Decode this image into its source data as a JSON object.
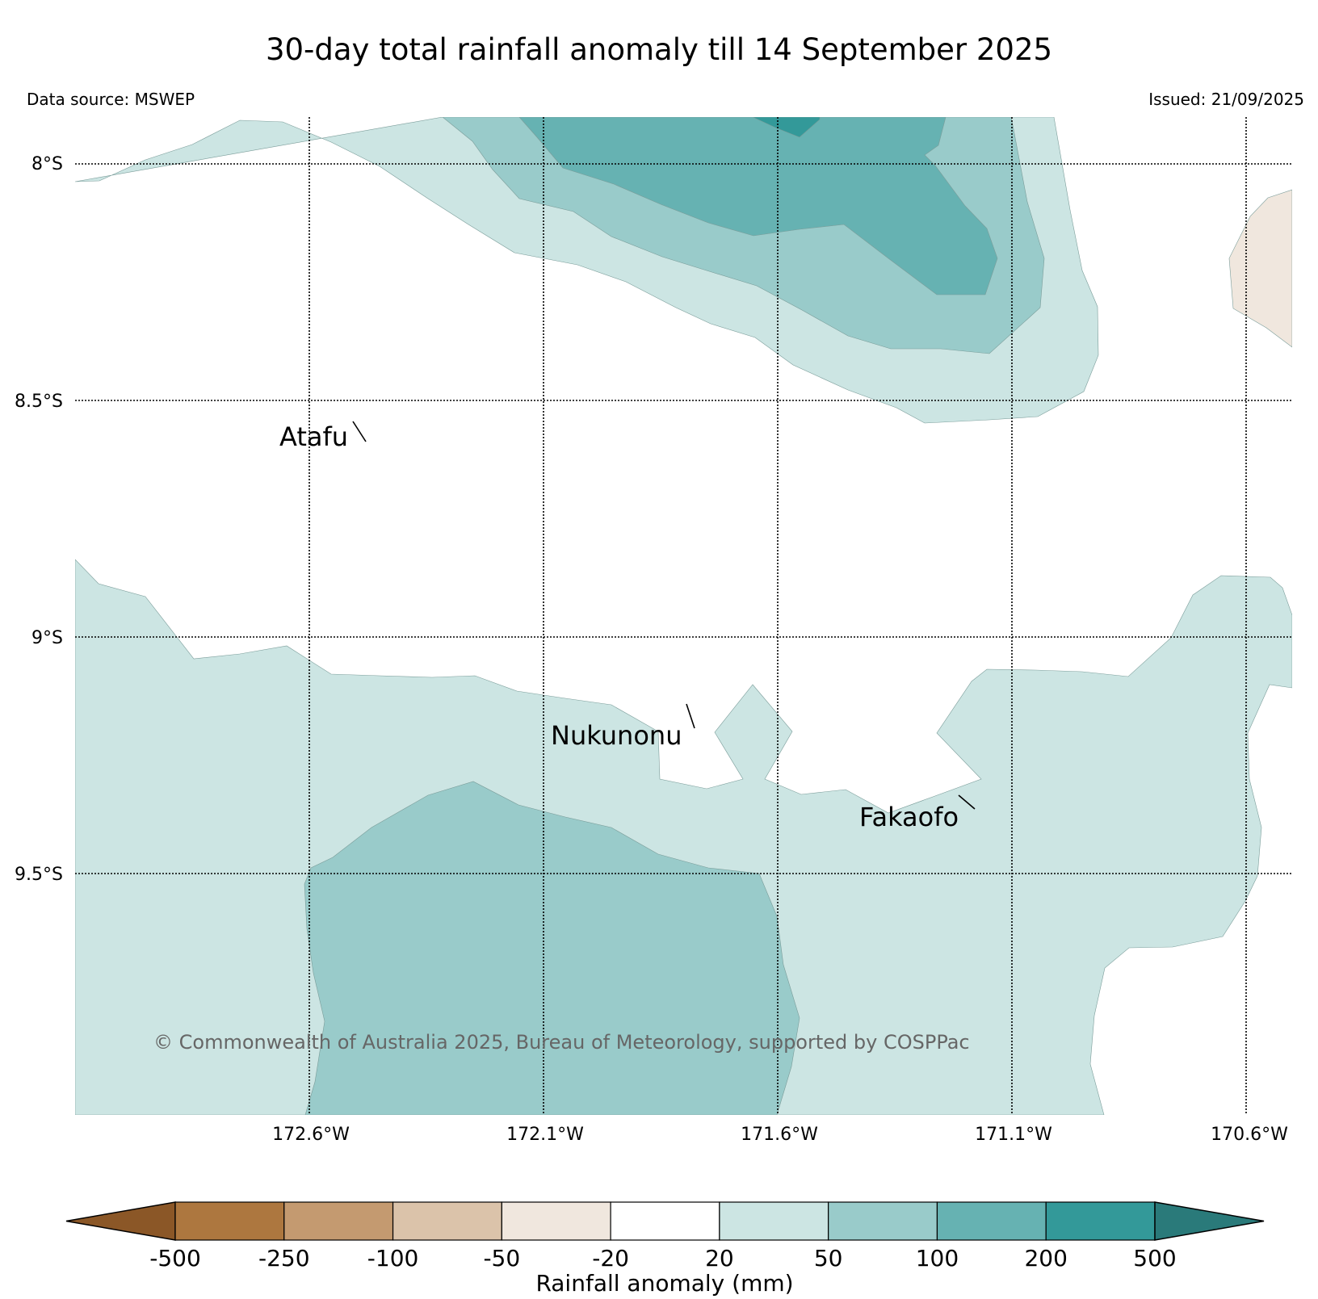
{
  "title": "30-day total rainfall anomaly till 14 September 2025",
  "data_source": "Data source: MSWEP",
  "issued": "Issued: 21/09/2025",
  "copyright": "© Commonwealth of Australia 2025, Bureau of Meteorology, supported by COSPPac",
  "latitude_labels": [
    "8°S",
    "8.5°S",
    "9°S",
    "9.5°S"
  ],
  "longitude_labels": [
    "172.6°W",
    "172.1°W",
    "171.6°W",
    "171.1°W",
    "170.6°W"
  ],
  "places": [
    {
      "name": "Atafu",
      "lon": -172.52,
      "lat": -8.56
    },
    {
      "name": "Nukunonu",
      "lon": -171.84,
      "lat": -9.17
    },
    {
      "name": "Fakaofo",
      "lon": -171.23,
      "lat": -9.36
    }
  ],
  "colorbar": {
    "title": "Rainfall anomaly (mm)",
    "ticks": [
      "-500",
      "-250",
      "-100",
      "-50",
      "-20",
      "20",
      "50",
      "100",
      "200",
      "500"
    ],
    "colors": [
      "#8b5727",
      "#ad773f",
      "#c49a70",
      "#dbc3aa",
      "#f0e7de",
      "#ffffff",
      "#cce5e3",
      "#99cbca",
      "#66b2b2",
      "#339999",
      "#2a7a7a"
    ]
  },
  "contour_colors": {
    "c20_50": "#cce5e3",
    "c50_100": "#99cbca",
    "c100_200": "#66b2b2",
    "c200_500": "#339999",
    "cm50_m20": "#f0e7de"
  }
}
